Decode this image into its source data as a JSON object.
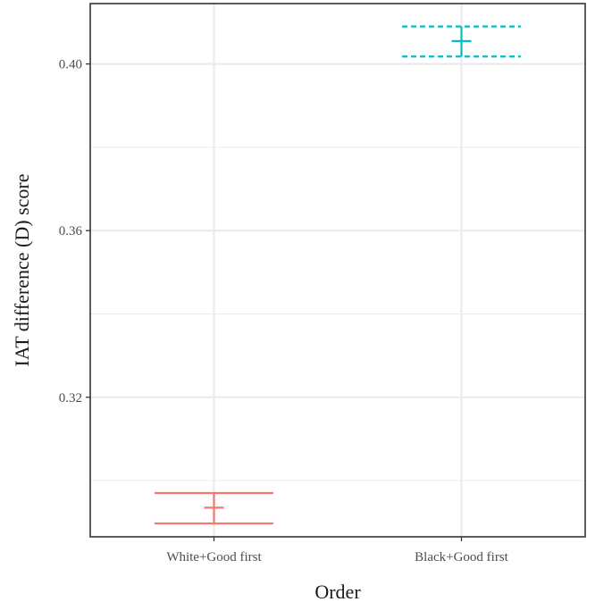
{
  "chart_data": {
    "type": "errorbar",
    "xlabel": "Order",
    "ylabel": "IAT difference (D) score",
    "categories": [
      "White+Good first",
      "Black+Good first"
    ],
    "ylim": [
      0.2865,
      0.4145
    ],
    "yticks": [
      0.32,
      0.36,
      0.4
    ],
    "ytick_labels": [
      "0.32",
      "0.36",
      "0.40"
    ],
    "grid": true,
    "legend": "none",
    "series": [
      {
        "category": "White+Good first",
        "color": "#F8766D",
        "linestyle": "solid",
        "mean": 0.2935,
        "lower": 0.2897,
        "upper": 0.297
      },
      {
        "category": "Black+Good first",
        "color": "#00BFC4",
        "linestyle": "dashed",
        "mean": 0.4055,
        "lower": 0.4018,
        "upper": 0.409
      }
    ]
  }
}
